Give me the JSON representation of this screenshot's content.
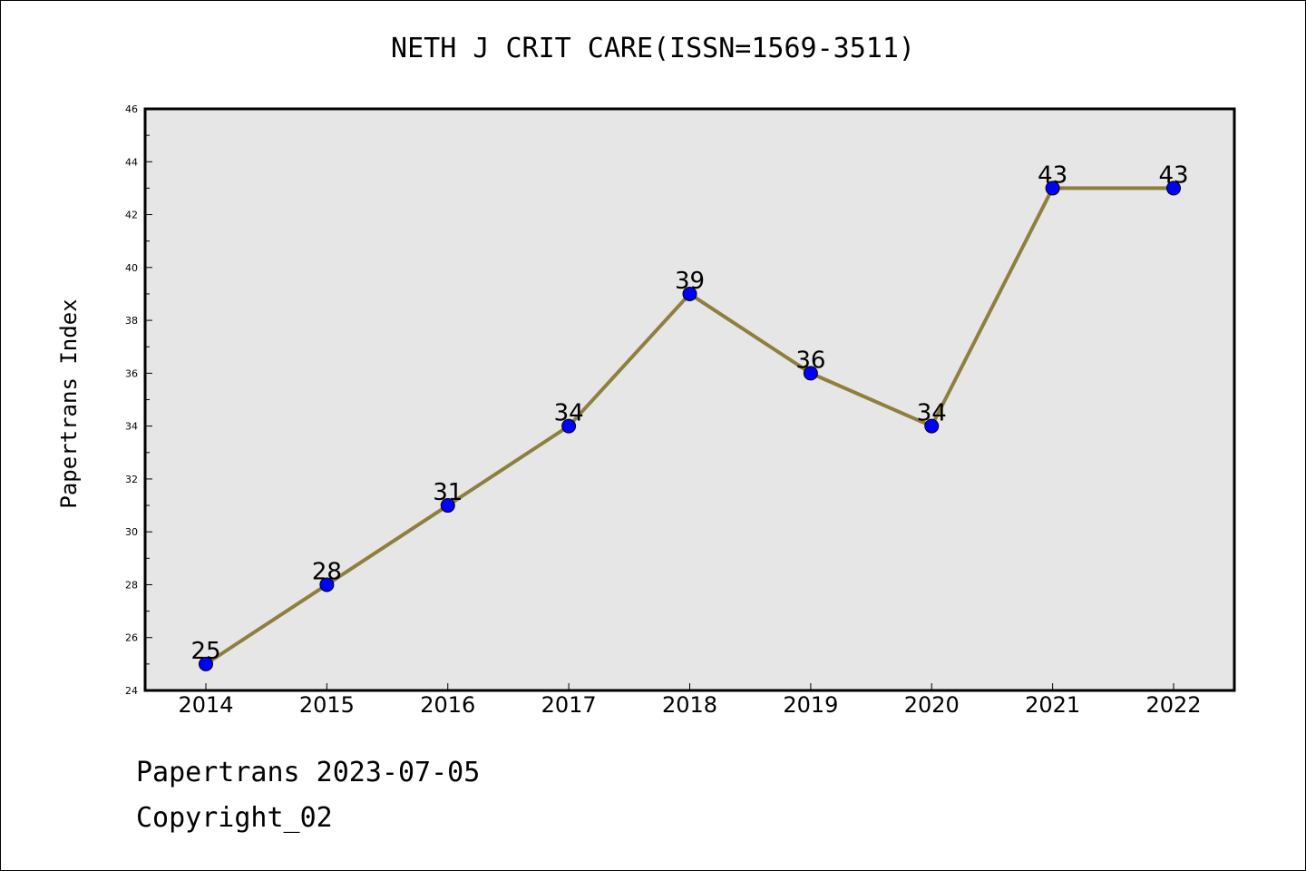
{
  "chart_data": {
    "type": "line",
    "title": "NETH J CRIT CARE(ISSN=1569-3511)",
    "xlabel": "",
    "ylabel": "Papertrans Index",
    "categories": [
      "2014",
      "2015",
      "2016",
      "2017",
      "2018",
      "2019",
      "2020",
      "2021",
      "2022"
    ],
    "series": [
      {
        "values": [
          25,
          28,
          31,
          34,
          39,
          36,
          34,
          43,
          43
        ]
      }
    ],
    "data_labels": [
      "25",
      "28",
      "31",
      "34",
      "39",
      "36",
      "34",
      "43",
      "43"
    ],
    "ylim": [
      24,
      46
    ],
    "yticks": [
      "24",
      "26",
      "28",
      "30",
      "32",
      "34",
      "36",
      "38",
      "40",
      "42",
      "44",
      "46"
    ],
    "grid": false,
    "legend": "none",
    "colors": {
      "line": "#8f7f3f",
      "marker": "#0000ff",
      "plot_background": "#e6e6e6"
    }
  },
  "footer": {
    "date": "Papertrans 2023-07-05",
    "copyright": "Copyright_02"
  }
}
